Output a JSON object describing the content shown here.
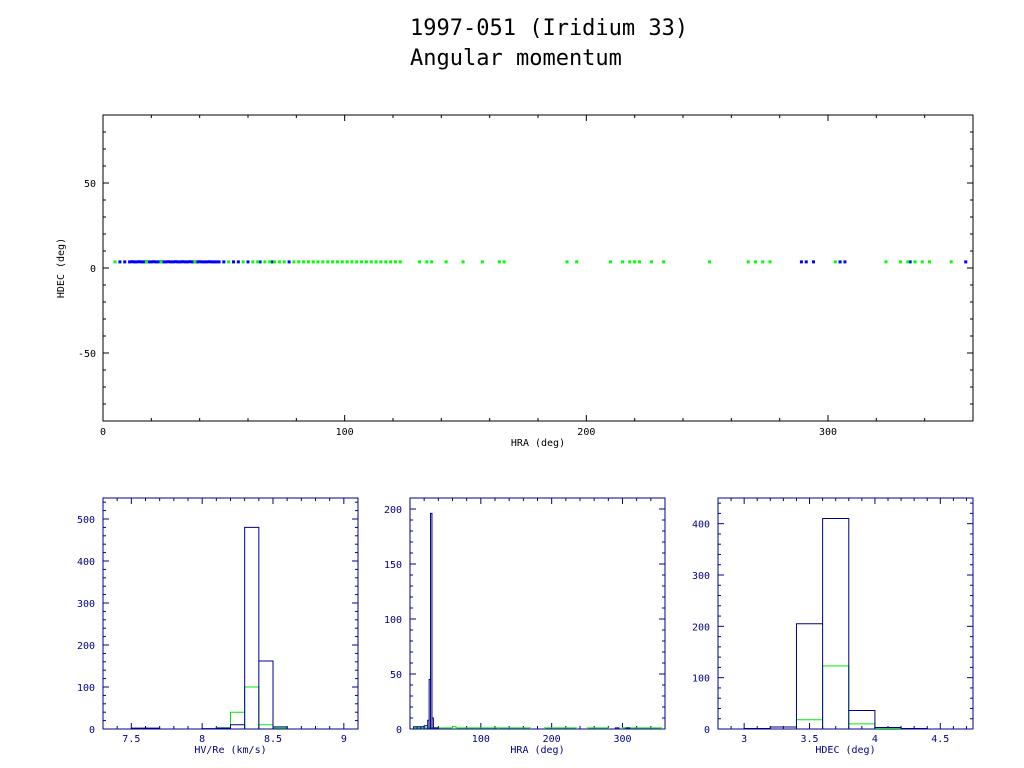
{
  "title": {
    "line1": "1997-051 (Iridium 33)",
    "line2": "Angular momentum"
  },
  "colors": {
    "series_a": "#0000ff",
    "series_b": "#00ff00",
    "hist_a": "#00008b",
    "hist_b": "#00ee00",
    "axis_main": "#000000",
    "axis_hist": "#00008b"
  },
  "chart_data": [
    {
      "type": "scatter",
      "xlabel": "HRA (deg)",
      "ylabel": "HDEC (deg)",
      "xlim": [
        0,
        360
      ],
      "ylim": [
        -90,
        90
      ],
      "xticks": [
        0,
        100,
        200,
        300
      ],
      "yticks": [
        -50,
        0,
        50
      ],
      "grid": false,
      "series": [
        {
          "color": "blue",
          "points": [
            [
              7,
              3.6
            ],
            [
              9,
              3.6
            ],
            [
              11,
              3.6
            ],
            [
              12,
              3.7
            ],
            [
              13,
              3.6
            ],
            [
              14,
              3.6
            ],
            [
              15,
              3.7
            ],
            [
              16,
              3.6
            ],
            [
              17,
              3.6
            ],
            [
              18,
              3.7
            ],
            [
              19,
              3.6
            ],
            [
              20,
              3.6
            ],
            [
              21,
              3.7
            ],
            [
              22,
              3.6
            ],
            [
              23,
              3.6
            ],
            [
              24,
              3.7
            ],
            [
              25,
              3.6
            ],
            [
              26,
              3.6
            ],
            [
              27,
              3.7
            ],
            [
              28,
              3.6
            ],
            [
              29,
              3.6
            ],
            [
              30,
              3.7
            ],
            [
              31,
              3.6
            ],
            [
              32,
              3.6
            ],
            [
              33,
              3.7
            ],
            [
              34,
              3.6
            ],
            [
              35,
              3.6
            ],
            [
              36,
              3.7
            ],
            [
              37,
              3.6
            ],
            [
              38,
              3.6
            ],
            [
              39,
              3.6
            ],
            [
              40,
              3.7
            ],
            [
              41,
              3.6
            ],
            [
              42,
              3.6
            ],
            [
              43,
              3.6
            ],
            [
              44,
              3.7
            ],
            [
              45,
              3.6
            ],
            [
              46,
              3.6
            ],
            [
              47,
              3.6
            ],
            [
              48,
              3.6
            ],
            [
              50,
              3.6
            ],
            [
              54,
              3.6
            ],
            [
              56,
              3.6
            ],
            [
              60,
              3.6
            ],
            [
              65,
              3.6
            ],
            [
              70,
              3.6
            ],
            [
              77,
              3.6
            ],
            [
              289,
              3.6
            ],
            [
              291,
              3.6
            ],
            [
              294,
              3.6
            ],
            [
              305,
              3.6
            ],
            [
              307,
              3.6
            ],
            [
              334,
              3.6
            ],
            [
              357,
              3.6
            ]
          ]
        },
        {
          "color": "green",
          "points": [
            [
              5,
              3.6
            ],
            [
              18,
              3.6
            ],
            [
              24,
              3.6
            ],
            [
              38,
              3.6
            ],
            [
              52,
              3.6
            ],
            [
              58,
              3.6
            ],
            [
              62,
              3.6
            ],
            [
              64,
              3.6
            ],
            [
              67,
              3.6
            ],
            [
              69,
              3.6
            ],
            [
              71,
              3.6
            ],
            [
              73,
              3.6
            ],
            [
              75,
              3.6
            ],
            [
              79,
              3.6
            ],
            [
              81,
              3.6
            ],
            [
              83,
              3.6
            ],
            [
              85,
              3.6
            ],
            [
              87,
              3.6
            ],
            [
              89,
              3.6
            ],
            [
              91,
              3.6
            ],
            [
              93,
              3.6
            ],
            [
              95,
              3.6
            ],
            [
              97,
              3.6
            ],
            [
              99,
              3.6
            ],
            [
              101,
              3.6
            ],
            [
              103,
              3.6
            ],
            [
              105,
              3.6
            ],
            [
              107,
              3.6
            ],
            [
              109,
              3.6
            ],
            [
              111,
              3.6
            ],
            [
              113,
              3.6
            ],
            [
              115,
              3.6
            ],
            [
              117,
              3.6
            ],
            [
              119,
              3.6
            ],
            [
              121,
              3.6
            ],
            [
              123,
              3.6
            ],
            [
              131,
              3.6
            ],
            [
              134,
              3.6
            ],
            [
              136,
              3.6
            ],
            [
              142,
              3.6
            ],
            [
              149,
              3.6
            ],
            [
              157,
              3.6
            ],
            [
              164,
              3.6
            ],
            [
              166,
              3.6
            ],
            [
              192,
              3.6
            ],
            [
              196,
              3.6
            ],
            [
              210,
              3.6
            ],
            [
              215,
              3.6
            ],
            [
              218,
              3.6
            ],
            [
              220,
              3.6
            ],
            [
              222,
              3.6
            ],
            [
              227,
              3.6
            ],
            [
              232,
              3.6
            ],
            [
              251,
              3.6
            ],
            [
              267,
              3.6
            ],
            [
              270,
              3.6
            ],
            [
              273,
              3.6
            ],
            [
              276,
              3.6
            ],
            [
              303,
              3.6
            ],
            [
              324,
              3.6
            ],
            [
              330,
              3.6
            ],
            [
              333,
              3.6
            ],
            [
              336,
              3.6
            ],
            [
              339,
              3.6
            ],
            [
              342,
              3.6
            ],
            [
              351,
              3.6
            ]
          ]
        }
      ]
    },
    {
      "type": "histogram",
      "xlabel": "HV/Re (km/s)",
      "xlim": [
        7.3,
        9.1
      ],
      "ylim": [
        0,
        550
      ],
      "xticks": [
        "7.5",
        "8",
        "8.5",
        "9"
      ],
      "yticks": [
        0,
        100,
        200,
        300,
        400,
        500
      ],
      "series": [
        {
          "color": "blue",
          "bins": [
            [
              7.5,
              7.6,
              2
            ],
            [
              7.6,
              7.7,
              2
            ],
            [
              8.0,
              8.1,
              1
            ],
            [
              8.1,
              8.2,
              2
            ],
            [
              8.2,
              8.3,
              10
            ],
            [
              8.3,
              8.4,
              480
            ],
            [
              8.4,
              8.5,
              162
            ],
            [
              8.5,
              8.6,
              5
            ]
          ]
        },
        {
          "color": "green",
          "bins": [
            [
              8.1,
              8.2,
              3
            ],
            [
              8.2,
              8.3,
              40
            ],
            [
              8.3,
              8.4,
              100
            ],
            [
              8.4,
              8.5,
              10
            ],
            [
              8.5,
              8.6,
              2
            ]
          ]
        }
      ]
    },
    {
      "type": "histogram",
      "xlabel": "HRA (deg)",
      "xlim": [
        0,
        360
      ],
      "ylim": [
        0,
        210
      ],
      "xticks": [
        "100",
        "200",
        "300"
      ],
      "yticks": [
        0,
        50,
        100,
        150,
        200
      ],
      "series": [
        {
          "color": "blue",
          "bins": [
            [
              5,
              10,
              2
            ],
            [
              10,
              15,
              2
            ],
            [
              15,
              20,
              2
            ],
            [
              20,
              25,
              3
            ],
            [
              25,
              27,
              8
            ],
            [
              27,
              29,
              45
            ],
            [
              29,
              31,
              196
            ],
            [
              31,
              33,
              10
            ],
            [
              33,
              40,
              1
            ],
            [
              290,
              295,
              1
            ],
            [
              305,
              310,
              1
            ]
          ]
        },
        {
          "color": "green",
          "bins": [
            [
              5,
              60,
              1
            ],
            [
              60,
              65,
              2
            ],
            [
              65,
              125,
              1
            ],
            [
              125,
              170,
              1
            ],
            [
              190,
              235,
              1
            ],
            [
              250,
              280,
              1
            ],
            [
              300,
              355,
              1
            ]
          ]
        }
      ]
    },
    {
      "type": "histogram",
      "xlabel": "HDEC (deg)",
      "xlim": [
        2.8,
        4.75
      ],
      "ylim": [
        0,
        450
      ],
      "xticks": [
        "3",
        "3.5",
        "4",
        "4.5"
      ],
      "yticks": [
        0,
        100,
        200,
        300,
        400
      ],
      "series": [
        {
          "color": "blue",
          "bins": [
            [
              3.0,
              3.2,
              1
            ],
            [
              3.2,
              3.4,
              4
            ],
            [
              3.4,
              3.6,
              205
            ],
            [
              3.6,
              3.8,
              410
            ],
            [
              3.8,
              4.0,
              36
            ],
            [
              4.0,
              4.2,
              3
            ],
            [
              4.2,
              4.4,
              1
            ]
          ]
        },
        {
          "color": "green",
          "bins": [
            [
              3.4,
              3.6,
              18
            ],
            [
              3.6,
              3.8,
              123
            ],
            [
              3.8,
              4.0,
              10
            ],
            [
              4.0,
              4.2,
              1
            ]
          ]
        }
      ]
    }
  ]
}
